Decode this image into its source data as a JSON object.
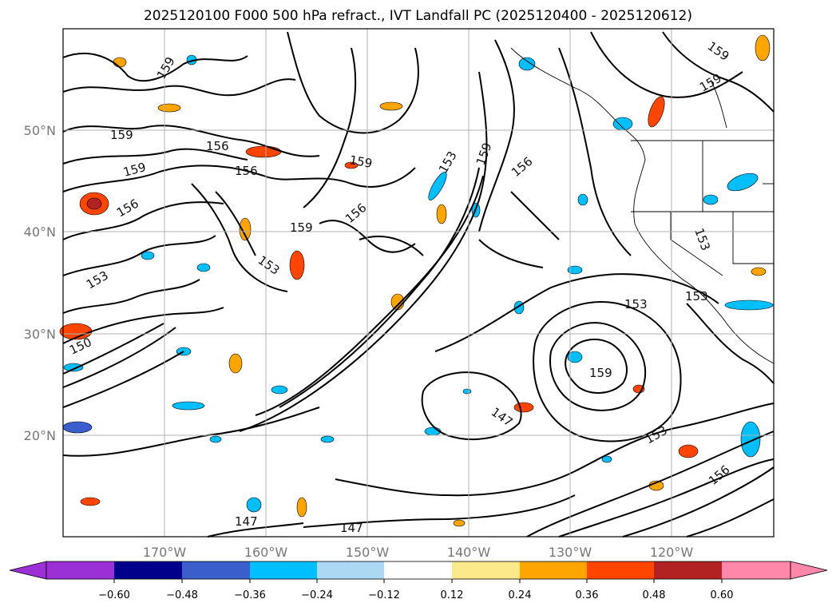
{
  "title": "2025120100 F000 500 hPa refract., IVT Landfall PC (2025120400 - 2025120612)",
  "map": {
    "lat_labels": [
      "50°N",
      "40°N",
      "30°N",
      "20°N"
    ],
    "lon_labels": [
      "170°W",
      "160°W",
      "150°W",
      "140°W",
      "130°W",
      "120°W"
    ],
    "grid_color": "#b0b0b0",
    "contour_color": "#000000",
    "contour_labels": [
      {
        "text": "159"
      },
      {
        "text": "156"
      },
      {
        "text": "156"
      },
      {
        "text": "159"
      },
      {
        "text": "156"
      },
      {
        "text": "153"
      },
      {
        "text": "150"
      },
      {
        "text": "159"
      },
      {
        "text": "153"
      },
      {
        "text": "159"
      },
      {
        "text": "153"
      },
      {
        "text": "156"
      },
      {
        "text": "159"
      },
      {
        "text": "147"
      },
      {
        "text": "147"
      },
      {
        "text": "147"
      },
      {
        "text": "153"
      },
      {
        "text": "159"
      },
      {
        "text": "153"
      },
      {
        "text": "156"
      },
      {
        "text": "159"
      },
      {
        "text": "159"
      },
      {
        "text": "156"
      },
      {
        "text": "153"
      },
      {
        "text": "159"
      },
      {
        "text": "153"
      }
    ]
  },
  "colorbar": {
    "ticks": [
      "−0.60",
      "−0.48",
      "−0.36",
      "−0.24",
      "−0.12",
      "0.12",
      "0.24",
      "0.36",
      "0.48",
      "0.60"
    ],
    "colors": [
      "#9b30d6",
      "#00008b",
      "#3a5fcd",
      "#00bfff",
      "#add8f5",
      "#ffffff",
      "#fce98c",
      "#ffa500",
      "#ff4500",
      "#b22222",
      "#ff88aa"
    ]
  }
}
